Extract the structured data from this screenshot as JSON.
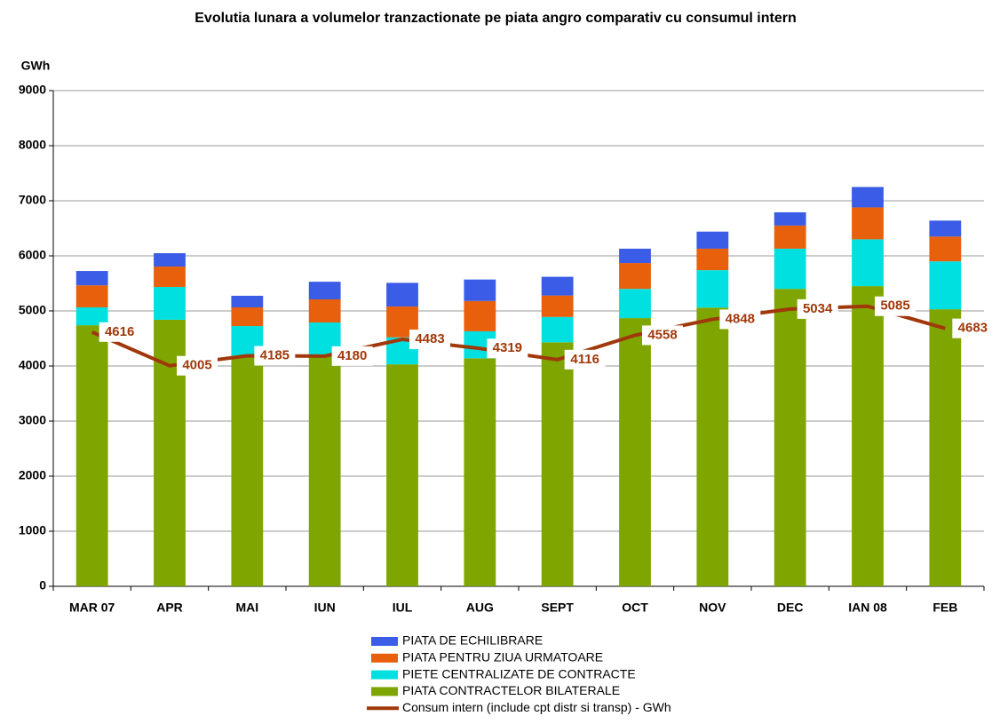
{
  "chart_data": {
    "type": "bar",
    "stacked": true,
    "title": "Evolutia lunara a volumelor tranzactionate pe piata angro comparativ cu consumul intern",
    "y_label": "GWh",
    "categories": [
      "MAR 07",
      "APR",
      "MAI",
      "IUN",
      "IUL",
      "AUG",
      "SEPT",
      "OCT",
      "NOV",
      "DEC",
      "IAN 08",
      "FEB"
    ],
    "series": [
      {
        "name": "PIATA CONTRACTELOR BILATERALE",
        "color": "#7fa600",
        "values": [
          4740,
          4840,
          4190,
          4190,
          4030,
          4140,
          4430,
          4870,
          5060,
          5400,
          5450,
          5030
        ]
      },
      {
        "name": "PIETE CENTRALIZATE DE CONTRACTE",
        "color": "#00e0e0",
        "values": [
          325,
          595,
          535,
          600,
          490,
          490,
          460,
          530,
          680,
          730,
          850,
          870
        ]
      },
      {
        "name": "PIATA PENTRU ZIUA URMATOARE",
        "color": "#e8600c",
        "values": [
          400,
          371,
          340,
          420,
          560,
          550,
          390,
          470,
          390,
          420,
          580,
          450
        ]
      },
      {
        "name": "PIATA DE ECHILIBRARE",
        "color": "#3a5ce6",
        "values": [
          260,
          242,
          210,
          320,
          430,
          390,
          340,
          260,
          310,
          240,
          370,
          290
        ]
      },
      {
        "name": "Consum intern (include cpt distr si transp) - GWh",
        "type": "line",
        "color": "#a0380a",
        "values": [
          4616,
          4005,
          4185,
          4180,
          4483,
          4319,
          4116,
          4558,
          4848,
          5034,
          5085,
          4683
        ]
      }
    ],
    "ylim": [
      0,
      9000
    ],
    "yticks": [
      0,
      1000,
      2000,
      3000,
      4000,
      5000,
      6000,
      7000,
      8000,
      9000
    ],
    "grid": true
  }
}
